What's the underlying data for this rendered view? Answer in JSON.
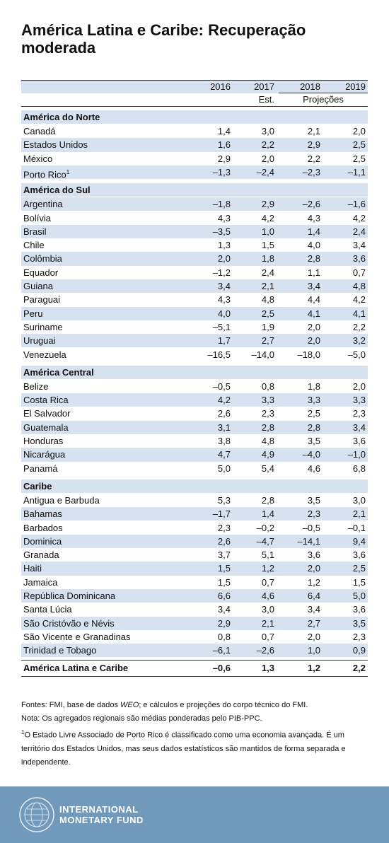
{
  "title": "América Latina e Caribe: Recuperação moderada",
  "table": {
    "columns": [
      "2016",
      "2017",
      "2018",
      "2019"
    ],
    "subheaders": {
      "est": "Est.",
      "proj": "Projeções"
    },
    "sections": [
      {
        "name": "América do Norte",
        "rows": [
          {
            "country": "Canadá",
            "values": [
              "1,4",
              "3,0",
              "2,1",
              "2,0"
            ]
          },
          {
            "country": "Estados Unidos",
            "values": [
              "1,6",
              "2,2",
              "2,9",
              "2,5"
            ]
          },
          {
            "country": "México",
            "values": [
              "2,9",
              "2,0",
              "2,2",
              "2,5"
            ]
          },
          {
            "country": "Porto Rico",
            "note": "1",
            "values": [
              "–1,3",
              "–2,4",
              "–2,3",
              "–1,1"
            ]
          }
        ]
      },
      {
        "name": "América do Sul",
        "rows": [
          {
            "country": "Argentina",
            "values": [
              "–1,8",
              "2,9",
              "–2,6",
              "–1,6"
            ]
          },
          {
            "country": "Bolívia",
            "values": [
              "4,3",
              "4,2",
              "4,3",
              "4,2"
            ]
          },
          {
            "country": "Brasil",
            "values": [
              "–3,5",
              "1,0",
              "1,4",
              "2,4"
            ]
          },
          {
            "country": "Chile",
            "values": [
              "1,3",
              "1,5",
              "4,0",
              "3,4"
            ]
          },
          {
            "country": "Colômbia",
            "values": [
              "2,0",
              "1,8",
              "2,8",
              "3,6"
            ]
          },
          {
            "country": "Equador",
            "values": [
              "–1,2",
              "2,4",
              "1,1",
              "0,7"
            ]
          },
          {
            "country": "Guiana",
            "values": [
              "3,4",
              "2,1",
              "3,4",
              "4,8"
            ]
          },
          {
            "country": "Paraguai",
            "values": [
              "4,3",
              "4,8",
              "4,4",
              "4,2"
            ]
          },
          {
            "country": "Peru",
            "values": [
              "4,0",
              "2,5",
              "4,1",
              "4,1"
            ]
          },
          {
            "country": "Suriname",
            "values": [
              "–5,1",
              "1,9",
              "2,0",
              "2,2"
            ]
          },
          {
            "country": "Uruguai",
            "values": [
              "1,7",
              "2,7",
              "2,0",
              "3,2"
            ]
          },
          {
            "country": "Venezuela",
            "values": [
              "–16,5",
              "–14,0",
              "–18,0",
              "–5,0"
            ]
          }
        ]
      },
      {
        "name": "América Central",
        "rows": [
          {
            "country": "Belize",
            "values": [
              "–0,5",
              "0,8",
              "1,8",
              "2,0"
            ]
          },
          {
            "country": "Costa Rica",
            "values": [
              "4,2",
              "3,3",
              "3,3",
              "3,3"
            ]
          },
          {
            "country": "El Salvador",
            "values": [
              "2,6",
              "2,3",
              "2,5",
              "2,3"
            ]
          },
          {
            "country": "Guatemala",
            "values": [
              "3,1",
              "2,8",
              "2,8",
              "3,4"
            ]
          },
          {
            "country": "Honduras",
            "values": [
              "3,8",
              "4,8",
              "3,5",
              "3,6"
            ]
          },
          {
            "country": "Nicarágua",
            "values": [
              "4,7",
              "4,9",
              "–4,0",
              "–1,0"
            ]
          },
          {
            "country": "Panamá",
            "values": [
              "5,0",
              "5,4",
              "4,6",
              "6,8"
            ]
          }
        ]
      },
      {
        "name": "Caribe",
        "rows": [
          {
            "country": "Antigua e Barbuda",
            "values": [
              "5,3",
              "2,8",
              "3,5",
              "3,0"
            ]
          },
          {
            "country": "Bahamas",
            "values": [
              "–1,7",
              "1,4",
              "2,3",
              "2,1"
            ]
          },
          {
            "country": "Barbados",
            "values": [
              "2,3",
              "–0,2",
              "–0,5",
              "–0,1"
            ]
          },
          {
            "country": "Dominica",
            "values": [
              "2,6",
              "–4,7",
              "–14,1",
              "9,4"
            ]
          },
          {
            "country": "Granada",
            "values": [
              "3,7",
              "5,1",
              "3,6",
              "3,6"
            ]
          },
          {
            "country": "Haiti",
            "values": [
              "1,5",
              "1,2",
              "2,0",
              "2,5"
            ]
          },
          {
            "country": "Jamaica",
            "values": [
              "1,5",
              "0,7",
              "1,2",
              "1,5"
            ]
          },
          {
            "country": "República Dominicana",
            "values": [
              "6,6",
              "4,6",
              "6,4",
              "5,0"
            ]
          },
          {
            "country": "Santa Lúcia",
            "values": [
              "3,4",
              "3,0",
              "3,4",
              "3,6"
            ]
          },
          {
            "country": "São Cristóvão e Névis",
            "values": [
              "2,9",
              "2,1",
              "2,7",
              "3,5"
            ]
          },
          {
            "country": "São Vicente e Granadinas",
            "values": [
              "0,8",
              "0,7",
              "2,0",
              "2,3"
            ]
          },
          {
            "country": "Trinidad e Tobago",
            "values": [
              "–6,1",
              "–2,6",
              "1,0",
              "0,9"
            ]
          }
        ]
      }
    ],
    "total": {
      "country": "América Latina e Caribe",
      "values": [
        "–0,6",
        "1,3",
        "1,2",
        "2,2"
      ]
    }
  },
  "notes": {
    "sources": [
      "Fontes: FMI, base de dados ",
      "WEO",
      "; e cálculos e projeções do corpo técnico do FMI."
    ],
    "note": "Nota: Os agregados regionais são médias ponderadas pelo PIB-PPC.",
    "footnote_mark": "1",
    "footnote": "O Estado Livre Associado de Porto Rico é classificado como uma economia avançada. É um território dos Estados Unidos, mas seus dados estatísticos são mantidos de forma separada e independente."
  },
  "footer": {
    "brand": [
      "INTERNATIONAL",
      "MONETARY FUND"
    ]
  }
}
